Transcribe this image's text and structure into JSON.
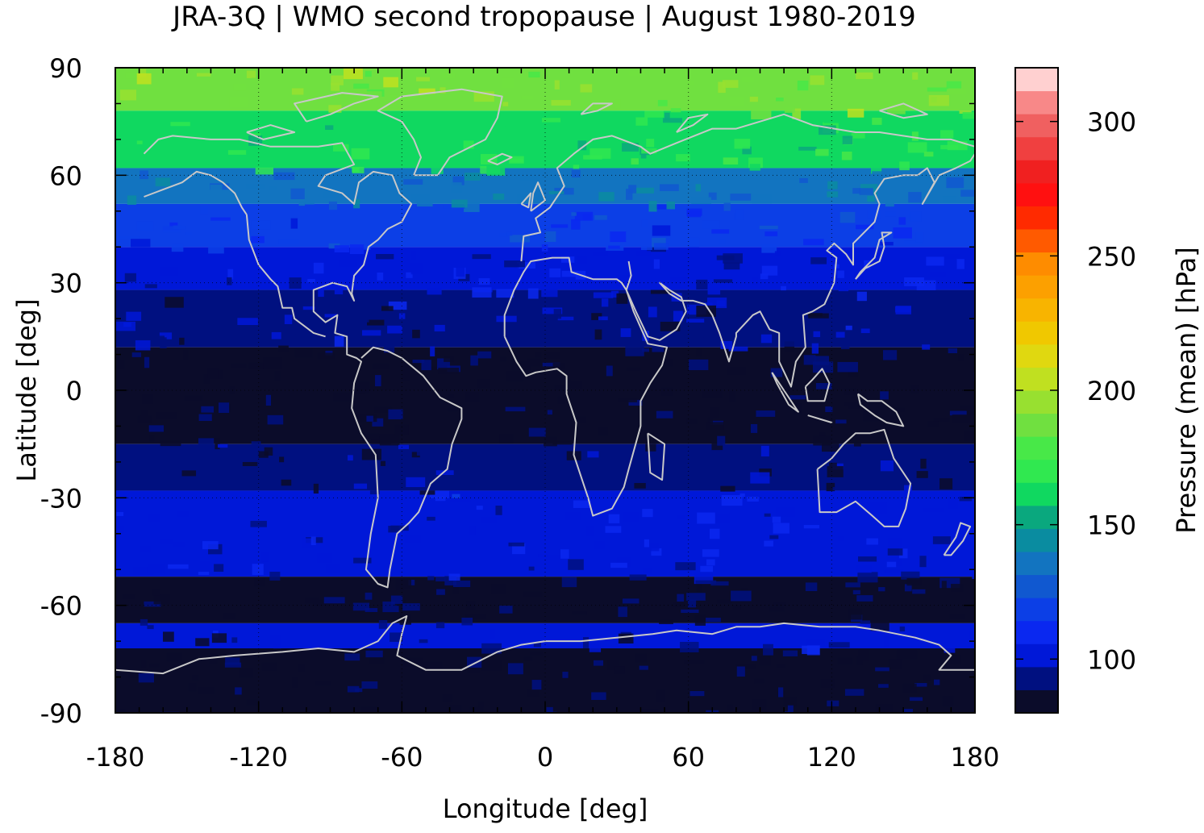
{
  "title": "JRA-3Q | WMO second tropopause | August 1980-2019",
  "chart_data": {
    "type": "heatmap",
    "title": "JRA-3Q | WMO second tropopause | August 1980-2019",
    "xlabel": "Longitude [deg]",
    "ylabel": "Latitude [deg]",
    "xlim": [
      -180,
      180
    ],
    "ylim": [
      -90,
      90
    ],
    "xticks": [
      "-180",
      "-120",
      "-60",
      "0",
      "60",
      "120",
      "180"
    ],
    "yticks": [
      "90",
      "60",
      "30",
      "0",
      "-30",
      "-60",
      "-90"
    ],
    "grid": true,
    "coastlines": true,
    "coastline_color": "#c8c8c8",
    "colorbar": {
      "label": "Pressure (mean) [hPa]",
      "ticks": [
        "100",
        "150",
        "200",
        "250",
        "300"
      ],
      "tick_values": [
        100,
        150,
        200,
        250,
        300
      ],
      "range": [
        80,
        320
      ],
      "colors": [
        "#0b0c2a",
        "#001080",
        "#0018d8",
        "#0a28f0",
        "#0c3fe6",
        "#1058d0",
        "#1274c0",
        "#0a8ca0",
        "#0aa87e",
        "#10d860",
        "#30e850",
        "#48e848",
        "#70e040",
        "#98e030",
        "#c0e020",
        "#e0d810",
        "#f0c800",
        "#f8b400",
        "#fca000",
        "#fe8c00",
        "#ff5a00",
        "#ff2a00",
        "#ff1010",
        "#f02020",
        "#f04040",
        "#f06060",
        "#f88888",
        "#ffd0d0"
      ]
    },
    "latitude_bands": [
      {
        "lat": [
          78,
          90
        ],
        "mean_pressure_hPa": 190
      },
      {
        "lat": [
          62,
          78
        ],
        "mean_pressure_hPa": 165
      },
      {
        "lat": [
          52,
          62
        ],
        "mean_pressure_hPa": 135
      },
      {
        "lat": [
          40,
          52
        ],
        "mean_pressure_hPa": 115
      },
      {
        "lat": [
          28,
          40
        ],
        "mean_pressure_hPa": 102
      },
      {
        "lat": [
          12,
          28
        ],
        "mean_pressure_hPa": 96
      },
      {
        "lat": [
          -15,
          12
        ],
        "mean_pressure_hPa": 85
      },
      {
        "lat": [
          -28,
          -15
        ],
        "mean_pressure_hPa": 92
      },
      {
        "lat": [
          -45,
          -28
        ],
        "mean_pressure_hPa": 104
      },
      {
        "lat": [
          -52,
          -45
        ],
        "mean_pressure_hPa": 100
      },
      {
        "lat": [
          -65,
          -52
        ],
        "mean_pressure_hPa": 86
      },
      {
        "lat": [
          -72,
          -65
        ],
        "mean_pressure_hPa": 98
      },
      {
        "lat": [
          -90,
          -72
        ],
        "mean_pressure_hPa": 86
      }
    ]
  }
}
